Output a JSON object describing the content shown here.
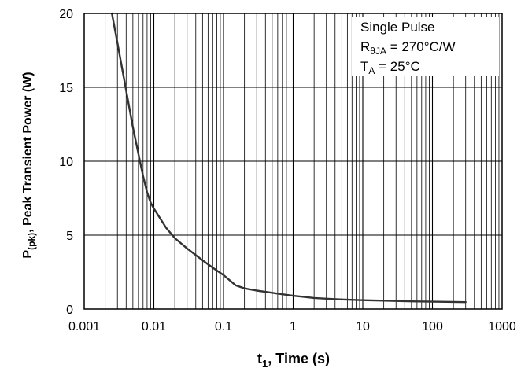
{
  "chart_data": {
    "type": "line",
    "title": "",
    "xlabel": "t",
    "xlabel_sub": "1",
    "xlabel_rest": ", Time (s)",
    "ylabel_prefix": "P",
    "ylabel_sub": "(pk)",
    "ylabel_rest": ", Peak Transient Power (W)",
    "xscale": "log",
    "xlim": [
      0.001,
      1000
    ],
    "ylim": [
      0,
      20
    ],
    "grid": true,
    "x_ticks": [
      0.001,
      0.01,
      0.1,
      1,
      10,
      100,
      1000
    ],
    "x_tick_labels": [
      "0.001",
      "0.01",
      "0.1",
      "1",
      "10",
      "100",
      "1000"
    ],
    "y_ticks": [
      0,
      5,
      10,
      15,
      20
    ],
    "y_tick_labels": [
      "0",
      "5",
      "10",
      "15",
      "20"
    ],
    "series": [
      {
        "color": "#333333",
        "x": [
          0.0025,
          0.003,
          0.004,
          0.005,
          0.006,
          0.007,
          0.008,
          0.009,
          0.01,
          0.015,
          0.02,
          0.03,
          0.05,
          0.07,
          0.1,
          0.15,
          0.2,
          0.3,
          0.5,
          0.7,
          1,
          2,
          3,
          5,
          10,
          20,
          50,
          100,
          200,
          300
        ],
        "y": [
          20,
          18,
          14.8,
          12.3,
          10.5,
          9.0,
          7.9,
          7.2,
          6.8,
          5.5,
          4.8,
          4.1,
          3.3,
          2.8,
          2.3,
          1.6,
          1.4,
          1.25,
          1.1,
          1.0,
          0.9,
          0.75,
          0.7,
          0.65,
          0.6,
          0.57,
          0.52,
          0.5,
          0.48,
          0.47
        ]
      }
    ],
    "annotation": {
      "line1": "Single Pulse",
      "line2_prefix": "R",
      "line2_sub": "θJA",
      "line2_rest": " = 270°C/W",
      "line3_prefix": "T",
      "line3_sub": "A",
      "line3_rest": " = 25°C"
    }
  }
}
